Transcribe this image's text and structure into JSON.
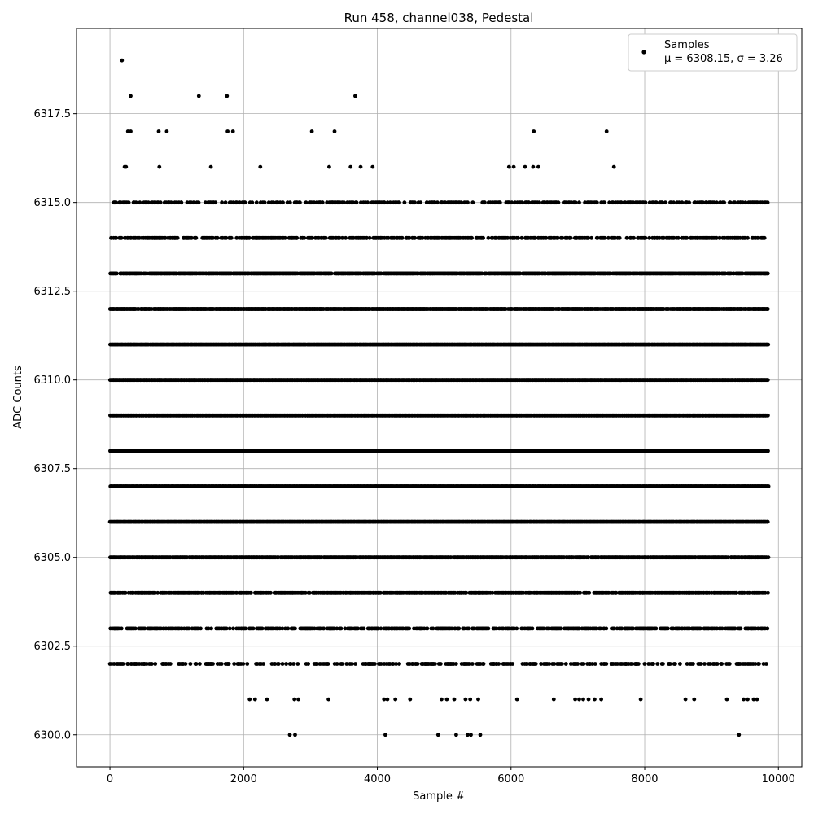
{
  "chart_data": {
    "type": "scatter",
    "title": "Run 458, channel038, Pedestal",
    "xlabel": "Sample #",
    "ylabel": "ADC Counts",
    "xlim": [
      -500,
      10350
    ],
    "ylim": [
      6299.1,
      6319.9
    ],
    "xticks": [
      0,
      2000,
      4000,
      6000,
      8000,
      10000
    ],
    "xtick_labels": [
      "0",
      "2000",
      "4000",
      "6000",
      "8000",
      "10000"
    ],
    "yticks": [
      6300.0,
      6302.5,
      6305.0,
      6307.5,
      6310.0,
      6312.5,
      6315.0,
      6317.5
    ],
    "ytick_labels": [
      "6300.0",
      "6302.5",
      "6305.0",
      "6307.5",
      "6310.0",
      "6312.5",
      "6315.0",
      "6317.5"
    ],
    "grid": true,
    "legend_position": "top-right",
    "marker_color": "#000000",
    "series": [
      {
        "name": "Samples",
        "stats_label": "μ = 6308.15, σ = 3.26",
        "x_range": [
          0,
          9850
        ],
        "dense_levels": [
          6302,
          6303,
          6304,
          6305,
          6306,
          6307,
          6308,
          6309,
          6310,
          6311,
          6312,
          6313,
          6314,
          6315
        ],
        "level_densities": [
          0.35,
          0.55,
          0.75,
          0.9,
          1.0,
          1.0,
          1.0,
          1.0,
          1.0,
          1.0,
          0.9,
          0.85,
          0.55,
          0.4
        ],
        "points": [
          [
            180,
            6319
          ],
          [
            310,
            6318
          ],
          [
            1330,
            6318
          ],
          [
            1750,
            6318
          ],
          [
            3670,
            6318
          ],
          [
            270,
            6317
          ],
          [
            310,
            6317
          ],
          [
            730,
            6317
          ],
          [
            850,
            6317
          ],
          [
            1760,
            6317
          ],
          [
            1840,
            6317
          ],
          [
            3020,
            6317
          ],
          [
            3360,
            6317
          ],
          [
            6340,
            6317
          ],
          [
            7430,
            6317
          ],
          [
            220,
            6316
          ],
          [
            240,
            6316
          ],
          [
            740,
            6316
          ],
          [
            1510,
            6316
          ],
          [
            2250,
            6316
          ],
          [
            3280,
            6316
          ],
          [
            3600,
            6316
          ],
          [
            3750,
            6316
          ],
          [
            3930,
            6316
          ],
          [
            5970,
            6316
          ],
          [
            6040,
            6316
          ],
          [
            6210,
            6316
          ],
          [
            6330,
            6316
          ],
          [
            6410,
            6316
          ],
          [
            7540,
            6316
          ],
          [
            2090,
            6301
          ],
          [
            2170,
            6301
          ],
          [
            2350,
            6301
          ],
          [
            2760,
            6301
          ],
          [
            2820,
            6301
          ],
          [
            3270,
            6301
          ],
          [
            4100,
            6301
          ],
          [
            4150,
            6301
          ],
          [
            4270,
            6301
          ],
          [
            4490,
            6301
          ],
          [
            4960,
            6301
          ],
          [
            5040,
            6301
          ],
          [
            5150,
            6301
          ],
          [
            5320,
            6301
          ],
          [
            5390,
            6301
          ],
          [
            5510,
            6301
          ],
          [
            6090,
            6301
          ],
          [
            6640,
            6301
          ],
          [
            6960,
            6301
          ],
          [
            7020,
            6301
          ],
          [
            7080,
            6301
          ],
          [
            7160,
            6301
          ],
          [
            7250,
            6301
          ],
          [
            7350,
            6301
          ],
          [
            7940,
            6301
          ],
          [
            8610,
            6301
          ],
          [
            8740,
            6301
          ],
          [
            9230,
            6301
          ],
          [
            9480,
            6301
          ],
          [
            9540,
            6301
          ],
          [
            9630,
            6301
          ],
          [
            9680,
            6301
          ],
          [
            2690,
            6300
          ],
          [
            2770,
            6300
          ],
          [
            4120,
            6300
          ],
          [
            4910,
            6300
          ],
          [
            5180,
            6300
          ],
          [
            5350,
            6300
          ],
          [
            5400,
            6300
          ],
          [
            5540,
            6300
          ],
          [
            9410,
            6300
          ]
        ]
      }
    ]
  }
}
